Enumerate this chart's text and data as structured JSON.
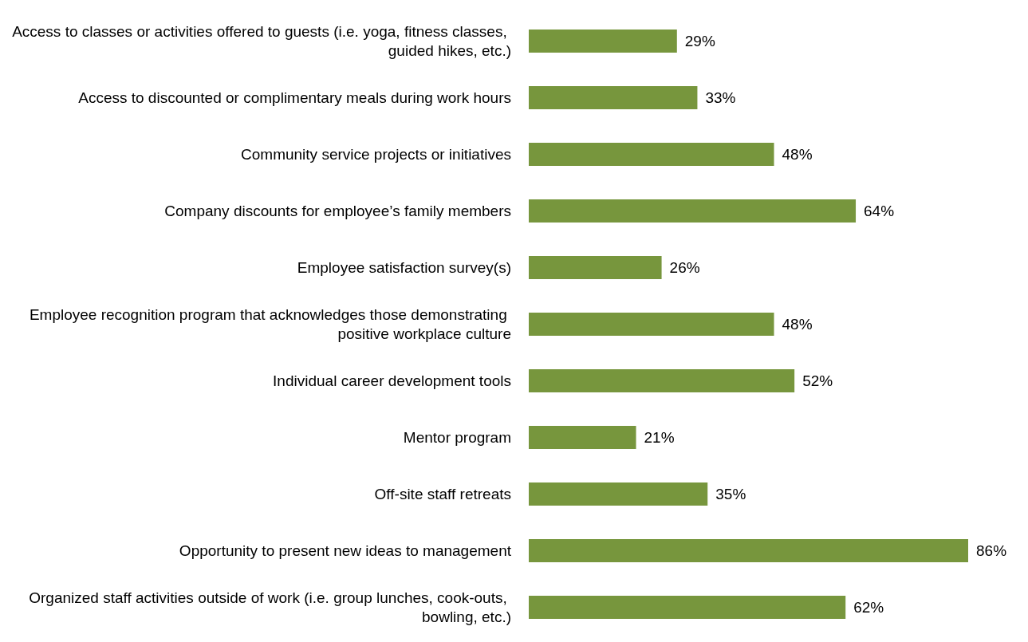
{
  "chart_data": {
    "type": "bar",
    "orientation": "horizontal",
    "categories": [
      "Access to classes or activities offered to guests (i.e. yoga, fitness classes, guided hikes, etc.)",
      "Access to discounted or complimentary meals during work hours",
      "Community service projects or initiatives",
      "Company discounts for employee’s family members",
      "Employee satisfaction survey(s)",
      "Employee recognition program that acknowledges those demonstrating positive workplace culture",
      "Individual career development tools",
      "Mentor program",
      "Off-site staff retreats",
      "Opportunity to present new ideas to management",
      "Organized staff activities outside of work (i.e. group lunches, cook-outs, bowling, etc.)"
    ],
    "values": [
      29,
      33,
      48,
      64,
      26,
      48,
      52,
      21,
      35,
      86,
      62
    ],
    "value_labels": [
      "29%",
      "33%",
      "48%",
      "64%",
      "26%",
      "48%",
      "52%",
      "21%",
      "35%",
      "86%",
      "62%"
    ],
    "color": "#77963d"
  }
}
